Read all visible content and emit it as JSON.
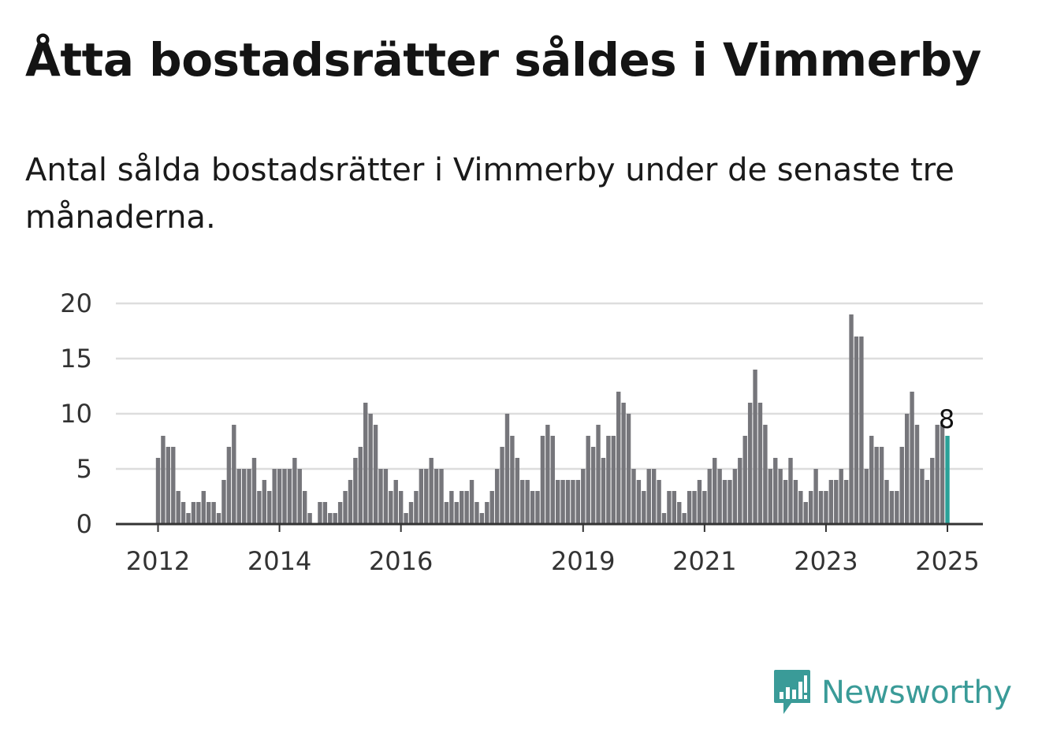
{
  "title": "Åtta bostadsrätter såldes i Vimmerby",
  "subtitle": "Antal sålda bostadsrätter i Vimmerby under de senaste tre månaderna.",
  "brand": {
    "name": "Newsworthy",
    "icon": "newsworthy-logo-icon",
    "color": "#3a9b98"
  },
  "chart_data": {
    "type": "bar",
    "title": "",
    "xlabel": "",
    "ylabel": "",
    "ylim": [
      0,
      20
    ],
    "yticks": [
      0,
      5,
      10,
      15,
      20
    ],
    "grid": true,
    "xtick_labels": [
      {
        "label": "2012",
        "index": 0
      },
      {
        "label": "2014",
        "index": 24
      },
      {
        "label": "2016",
        "index": 48
      },
      {
        "label": "2019",
        "index": 84
      },
      {
        "label": "2021",
        "index": 108
      },
      {
        "label": "2023",
        "index": 132
      },
      {
        "label": "2025",
        "index": 156
      }
    ],
    "bar_color": "#76767b",
    "highlight_color": "#2aa198",
    "highlight_index": 156,
    "annotation": "8",
    "values": [
      6,
      8,
      7,
      7,
      3,
      2,
      1,
      2,
      2,
      3,
      2,
      2,
      1,
      4,
      7,
      9,
      5,
      5,
      5,
      6,
      3,
      4,
      3,
      5,
      5,
      5,
      5,
      6,
      5,
      3,
      1,
      0,
      2,
      2,
      1,
      1,
      2,
      3,
      4,
      6,
      7,
      11,
      10,
      9,
      5,
      5,
      3,
      4,
      3,
      1,
      2,
      3,
      5,
      5,
      6,
      5,
      5,
      2,
      3,
      2,
      3,
      3,
      4,
      2,
      1,
      2,
      3,
      5,
      7,
      10,
      8,
      6,
      4,
      4,
      3,
      3,
      8,
      9,
      8,
      4,
      4,
      4,
      4,
      4,
      5,
      8,
      7,
      9,
      6,
      8,
      8,
      12,
      11,
      10,
      5,
      4,
      3,
      5,
      5,
      4,
      1,
      3,
      3,
      2,
      1,
      3,
      3,
      4,
      3,
      5,
      6,
      5,
      4,
      4,
      5,
      6,
      8,
      11,
      14,
      11,
      9,
      5,
      6,
      5,
      4,
      6,
      4,
      3,
      2,
      3,
      5,
      3,
      3,
      4,
      4,
      5,
      4,
      19,
      17,
      17,
      5,
      8,
      7,
      7,
      4,
      3,
      3,
      7,
      10,
      12,
      9,
      5,
      4,
      6,
      9,
      9,
      8
    ]
  }
}
